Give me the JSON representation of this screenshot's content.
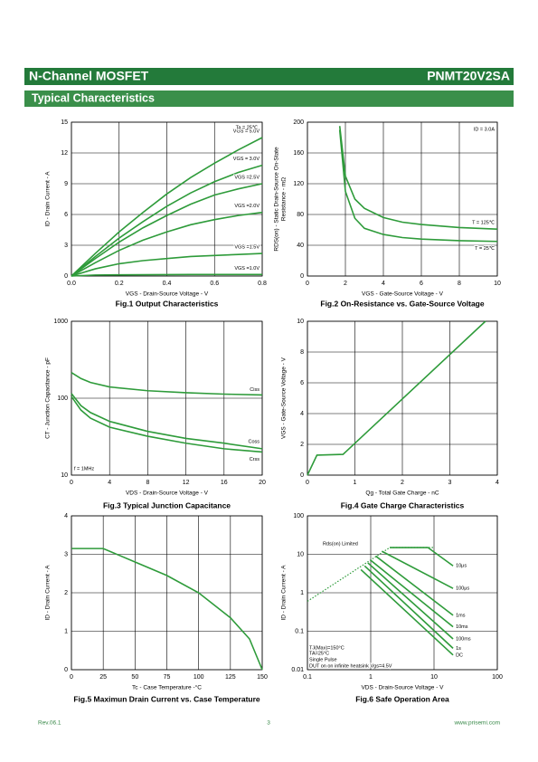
{
  "header": {
    "title": "N-Channel MOSFET",
    "part": "PNMT20V2SA",
    "section": "Typical Characteristics"
  },
  "footer": {
    "revision": "Rev.06.1",
    "page": 3,
    "website": "www.prisemi.com"
  },
  "chart_data": [
    {
      "type": "line",
      "title": "Fig.1 Output Characteristics",
      "x_label": "VGS - Drain-Source Voltage - V",
      "y_label": "ID - Drain Current - A",
      "grid": true,
      "xlim": [
        0,
        0.8
      ],
      "xticks": [
        {
          "value": 0,
          "label": "0.0"
        },
        0.2,
        0.4,
        0.6,
        0.8
      ],
      "ylim": [
        0,
        15
      ],
      "yticks": [
        0,
        3,
        6,
        9,
        12,
        15
      ],
      "x": [
        0,
        0.1,
        0.2,
        0.3,
        0.4,
        0.5,
        0.6,
        0.7,
        0.8
      ],
      "series": [
        {
          "name": "VGS = 5.0V",
          "color": "#2e9b3a",
          "values": [
            0,
            2.2,
            4.3,
            6.2,
            8,
            9.6,
            11,
            12.3,
            13.5
          ]
        },
        {
          "name": "VGS = 3.0V",
          "color": "#2e9b3a",
          "values": [
            0,
            1.9,
            3.7,
            5.3,
            6.8,
            8.1,
            9.2,
            10.1,
            10.8
          ]
        },
        {
          "name": "VGS =2.5V",
          "color": "#2e9b3a",
          "values": [
            0,
            1.7,
            3.3,
            4.7,
            5.9,
            7,
            7.9,
            8.5,
            9
          ]
        },
        {
          "name": "VGS =2.0V",
          "color": "#2e9b3a",
          "values": [
            0,
            1.3,
            2.5,
            3.5,
            4.3,
            5,
            5.5,
            5.9,
            6.2
          ]
        },
        {
          "name": "VGS =1.5V",
          "color": "#2e9b3a",
          "values": [
            0,
            0.7,
            1.2,
            1.5,
            1.7,
            1.9,
            2,
            2.1,
            2.2
          ]
        },
        {
          "name": "VGS =1.0V",
          "color": "#2e9b3a",
          "values": [
            0,
            0.1,
            0.12,
            0.13,
            0.14,
            0.15,
            0.15,
            0.15,
            0.15
          ]
        }
      ],
      "annotations": [
        "Ta = 25℃"
      ]
    },
    {
      "type": "line",
      "title": "Fig.2 On-Resistance vs. Gate-Source Voltage",
      "x_label": "VGS - Gate-Source Voltage - V",
      "y_label": [
        "RDS(on) - Static Drain-Source On-State",
        "Resistance - mΩ"
      ],
      "grid": true,
      "xlim": [
        0,
        10
      ],
      "xticks": [
        0,
        2,
        4,
        6,
        8,
        10
      ],
      "ylim": [
        0,
        200
      ],
      "yticks": [
        0,
        40,
        80,
        120,
        160,
        200
      ],
      "x": [
        1.7,
        2,
        2.5,
        3,
        4,
        5,
        6,
        8,
        10
      ],
      "series": [
        {
          "name": "T = 125℃",
          "color": "#2e9b3a",
          "values": [
            195,
            130,
            100,
            88,
            76,
            70,
            67,
            63,
            61
          ]
        },
        {
          "name": "T = 25℃",
          "color": "#2e9b3a",
          "values": [
            190,
            110,
            75,
            62,
            54,
            50,
            48,
            46,
            45
          ]
        }
      ],
      "annotations": [
        "ID = 3.0A"
      ]
    },
    {
      "type": "line",
      "title": "Fig.3 Typical Junction Capacitance",
      "x_label": "VDS - Drain-Source Voltage - V",
      "y_label": "CT - Junction Capacitance - pF",
      "grid": true,
      "xlim": [
        0,
        20
      ],
      "xticks": [
        0,
        4,
        8,
        12,
        16,
        20
      ],
      "ylim": [
        10,
        1000
      ],
      "yscale": "log",
      "yticks": [
        10,
        100,
        1000
      ],
      "x": [
        0,
        1,
        2,
        4,
        8,
        12,
        16,
        20
      ],
      "series": [
        {
          "name": "Ciss",
          "color": "#2e9b3a",
          "values": [
            215,
            180,
            160,
            140,
            125,
            118,
            113,
            110
          ]
        },
        {
          "name": "Coss",
          "color": "#2e9b3a",
          "values": [
            115,
            80,
            65,
            50,
            37,
            30,
            26,
            22
          ]
        },
        {
          "name": "Crss",
          "color": "#2e9b3a",
          "values": [
            105,
            70,
            55,
            42,
            32,
            26,
            22,
            20
          ]
        }
      ],
      "annotations": [
        "f = 1MHz"
      ]
    },
    {
      "type": "line",
      "title": "Fig.4 Gate Charge Characteristics",
      "x_label": "Qg - Total Gate Charge - nC",
      "y_label": "VGS - Gate-Source Voltage - V",
      "grid": true,
      "xlim": [
        0,
        4
      ],
      "xticks": [
        0,
        1,
        2,
        3,
        4
      ],
      "ylim": [
        0,
        10
      ],
      "yticks": [
        0,
        2,
        4,
        6,
        8,
        10
      ],
      "x": [
        0,
        0.2,
        0.75,
        3.75
      ],
      "series": [
        {
          "color": "#2e9b3a",
          "values": [
            0,
            1.3,
            1.35,
            10
          ]
        }
      ]
    },
    {
      "type": "line",
      "title": "Fig.5 Maximun Drain Current vs. Case Temperature",
      "x_label": "Tc - Case Temperature -°C",
      "y_label": "ID - Drain Current - A",
      "grid": true,
      "xlim": [
        0,
        150
      ],
      "xticks": [
        0,
        25,
        50,
        75,
        100,
        125,
        150
      ],
      "ylim": [
        0,
        4
      ],
      "yticks": [
        0,
        1,
        2,
        3,
        4
      ],
      "x": [
        0,
        25,
        50,
        75,
        100,
        125,
        140,
        150
      ],
      "series": [
        {
          "color": "#2e9b3a",
          "values": [
            3.15,
            3.15,
            2.8,
            2.45,
            2,
            1.35,
            0.8,
            0
          ]
        }
      ]
    },
    {
      "type": "line",
      "title": "Fig.6 Safe Operation Area",
      "x_label": "VDS - Drain-Source Voltage - V",
      "y_label": "ID - Drain Current - A",
      "grid": true,
      "xlim": [
        0.1,
        100
      ],
      "xscale": "log",
      "xticks": [
        0.1,
        1,
        10,
        100
      ],
      "ylim": [
        0.01,
        100
      ],
      "yscale": "log",
      "yticks": [
        0.01,
        0.1,
        1,
        10,
        100
      ],
      "series": [
        {
          "name": "Rds(on) Limited",
          "color": "#2e9b3a",
          "style": "dotted",
          "x": [
            0.1,
            2,
            10
          ],
          "values": [
            0.6,
            15,
            15
          ]
        },
        {
          "name": "10μs",
          "color": "#2e9b3a",
          "x": [
            2,
            8,
            20
          ],
          "values": [
            15,
            15,
            5
          ]
        },
        {
          "name": "100μs",
          "color": "#2e9b3a",
          "x": [
            1.5,
            20
          ],
          "values": [
            12,
            1.3
          ]
        },
        {
          "name": "1ms",
          "color": "#2e9b3a",
          "x": [
            1.2,
            20
          ],
          "values": [
            9,
            0.26
          ]
        },
        {
          "name": "10ms",
          "color": "#2e9b3a",
          "x": [
            1,
            20
          ],
          "values": [
            7,
            0.13
          ]
        },
        {
          "name": "100ms",
          "color": "#2e9b3a",
          "x": [
            0.9,
            20
          ],
          "values": [
            6,
            0.063
          ]
        },
        {
          "name": "1s",
          "color": "#2e9b3a",
          "x": [
            0.8,
            20
          ],
          "values": [
            5,
            0.036
          ]
        },
        {
          "name": "DC",
          "color": "#2e9b3a",
          "x": [
            0.7,
            20
          ],
          "values": [
            4,
            0.024
          ]
        }
      ],
      "annotations": [
        "TJ(Max)=150°C",
        "TA=25°C",
        "Single Pulse",
        "DUT on on infinite heatsink Vgs=4.5V"
      ]
    }
  ]
}
